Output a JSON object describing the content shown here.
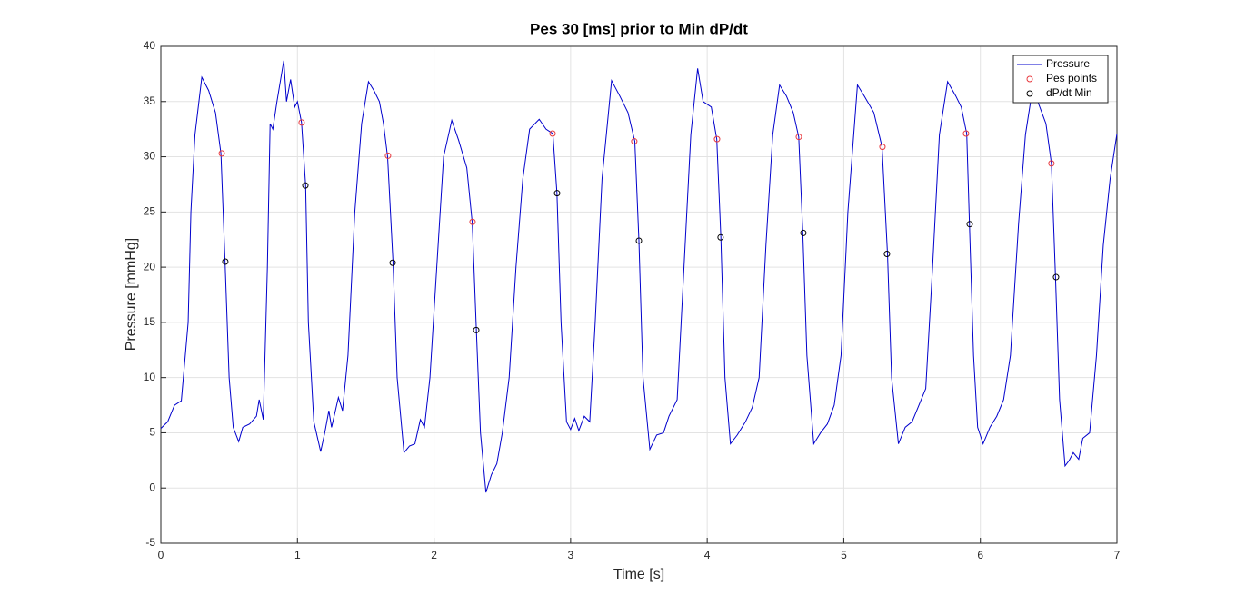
{
  "chart_data": {
    "type": "line",
    "title": "Pes 30 [ms] prior to Min dP/dt",
    "x_label": "Time [s]",
    "y_label": "Pressure [mmHg]",
    "xlim": [
      0,
      7
    ],
    "xticks": [
      0,
      1,
      2,
      3,
      4,
      5,
      6,
      7
    ],
    "ylim": [
      -5,
      40
    ],
    "yticks": [
      -5,
      0,
      5,
      10,
      15,
      20,
      25,
      30,
      35,
      40
    ],
    "grid": true,
    "legend_position": "top-right",
    "series": [
      {
        "name": "Pressure",
        "kind": "line",
        "color": "#0000cc",
        "x": [
          0,
          0.05,
          0.1,
          0.15,
          0.2,
          0.22,
          0.25,
          0.3,
          0.35,
          0.4,
          0.44,
          0.47,
          0.5,
          0.53,
          0.57,
          0.6,
          0.65,
          0.7,
          0.72,
          0.75,
          0.78,
          0.8,
          0.82,
          0.85,
          0.9,
          0.92,
          0.95,
          0.98,
          1.0,
          1.03,
          1.06,
          1.08,
          1.12,
          1.17,
          1.2,
          1.23,
          1.25,
          1.3,
          1.33,
          1.37,
          1.42,
          1.47,
          1.52,
          1.56,
          1.6,
          1.63,
          1.66,
          1.7,
          1.73,
          1.78,
          1.82,
          1.86,
          1.9,
          1.93,
          1.97,
          2.02,
          2.07,
          2.13,
          2.18,
          2.24,
          2.28,
          2.31,
          2.34,
          2.38,
          2.42,
          2.46,
          2.5,
          2.55,
          2.6,
          2.65,
          2.7,
          2.77,
          2.82,
          2.87,
          2.9,
          2.93,
          2.97,
          3.0,
          3.03,
          3.06,
          3.1,
          3.14,
          3.18,
          3.23,
          3.3,
          3.36,
          3.42,
          3.47,
          3.5,
          3.53,
          3.58,
          3.63,
          3.68,
          3.72,
          3.78,
          3.83,
          3.88,
          3.93,
          3.97,
          4.03,
          4.07,
          4.1,
          4.13,
          4.17,
          4.22,
          4.28,
          4.33,
          4.38,
          4.43,
          4.48,
          4.53,
          4.58,
          4.63,
          4.67,
          4.7,
          4.73,
          4.78,
          4.83,
          4.88,
          4.93,
          4.98,
          5.03,
          5.1,
          5.15,
          5.22,
          5.28,
          5.32,
          5.35,
          5.4,
          5.45,
          5.5,
          5.55,
          5.6,
          5.65,
          5.7,
          5.76,
          5.82,
          5.86,
          5.9,
          5.92,
          5.95,
          5.98,
          6.02,
          6.07,
          6.12,
          6.17,
          6.22,
          6.28,
          6.33,
          6.38,
          6.42,
          6.48,
          6.52,
          6.55,
          6.58,
          6.62,
          6.65,
          6.68,
          6.72,
          6.75,
          6.8,
          6.85,
          6.9,
          6.95,
          7.0
        ],
        "values": [
          5.4,
          6,
          7.5,
          7.9,
          15,
          25,
          32,
          37.2,
          36,
          34,
          30.3,
          20.5,
          10,
          5.5,
          4.2,
          5.5,
          5.8,
          6.5,
          8,
          6.2,
          20,
          33,
          32.5,
          35,
          38.7,
          35,
          37,
          34.5,
          35,
          33.1,
          27.4,
          15,
          6,
          3.3,
          5,
          7,
          5.5,
          8.2,
          7,
          12,
          25,
          33,
          36.8,
          36,
          35,
          33,
          30,
          20.4,
          10,
          3.2,
          3.8,
          4,
          6.2,
          5.5,
          10,
          20,
          30,
          33.3,
          31.5,
          29,
          24,
          14.3,
          5,
          -0.4,
          1.2,
          2.2,
          5,
          10,
          20,
          28,
          32.5,
          33.4,
          32.5,
          32.1,
          26.7,
          15,
          6,
          5.3,
          6.3,
          5.2,
          6.5,
          6,
          15,
          28,
          36.9,
          35.5,
          34,
          31.4,
          22.4,
          10,
          3.5,
          4.8,
          5,
          6.5,
          8,
          20,
          32,
          38,
          35,
          34.5,
          31.6,
          22.7,
          10,
          4,
          4.8,
          6,
          7.3,
          10,
          22,
          32,
          36.5,
          35.5,
          34,
          31.8,
          23.1,
          12,
          4,
          5,
          5.8,
          7.5,
          12,
          25,
          36.5,
          35.5,
          34,
          30.9,
          21.2,
          10,
          4,
          5.5,
          6,
          7.5,
          9,
          20,
          32,
          36.8,
          35.5,
          34.5,
          32.1,
          23.9,
          12,
          5.5,
          4,
          5.5,
          6.5,
          8,
          12,
          24,
          32,
          36,
          35,
          33,
          29.4,
          19.1,
          8,
          2,
          2.5,
          3.2,
          2.6,
          4.5,
          5,
          12,
          22,
          28,
          32.1
        ]
      },
      {
        "name": "Pes points",
        "kind": "scatter",
        "color": "#e8383d",
        "x": [
          0.446,
          1.031,
          1.663,
          2.282,
          2.868,
          3.466,
          4.072,
          4.671,
          5.283,
          5.895,
          6.52
        ],
        "values": [
          30.3,
          33.1,
          30.1,
          24.1,
          32.1,
          31.4,
          31.6,
          31.8,
          30.9,
          32.1,
          29.4
        ]
      },
      {
        "name": "dP/dt Min",
        "kind": "scatter",
        "color": "#000000",
        "x": [
          0.472,
          1.058,
          1.697,
          2.309,
          2.901,
          3.5,
          4.098,
          4.704,
          5.316,
          5.922,
          6.554
        ],
        "values": [
          20.5,
          27.4,
          20.4,
          14.3,
          26.7,
          22.4,
          22.7,
          23.1,
          21.2,
          23.9,
          19.1
        ]
      }
    ]
  }
}
